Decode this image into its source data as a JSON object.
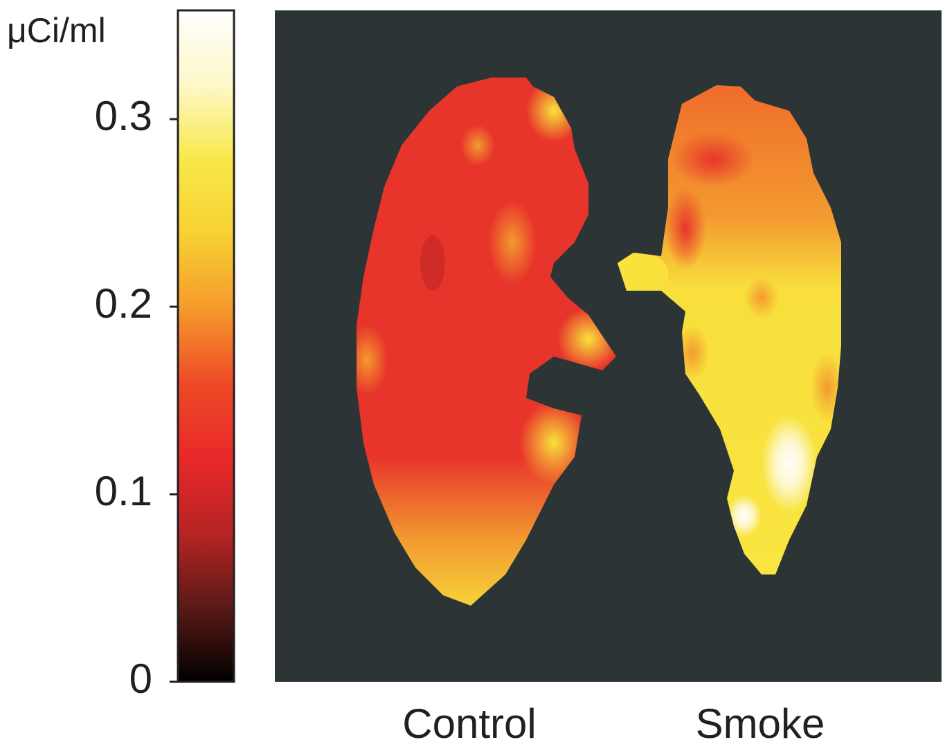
{
  "chart_data": {
    "type": "heatmap",
    "ylabel": "μCi/ml",
    "categories": [
      "Control",
      "Smoke"
    ],
    "ylim": [
      0,
      0.358
    ],
    "yticks": [
      0,
      0.1,
      0.2,
      0.3
    ],
    "colormap": [
      "#000000",
      "#5a1a17",
      "#b82424",
      "#e8282a",
      "#ee4a26",
      "#f59a2c",
      "#f7d132",
      "#f9e84a",
      "#fdf8c8",
      "#ffffff"
    ],
    "background": "#2d3435"
  }
}
